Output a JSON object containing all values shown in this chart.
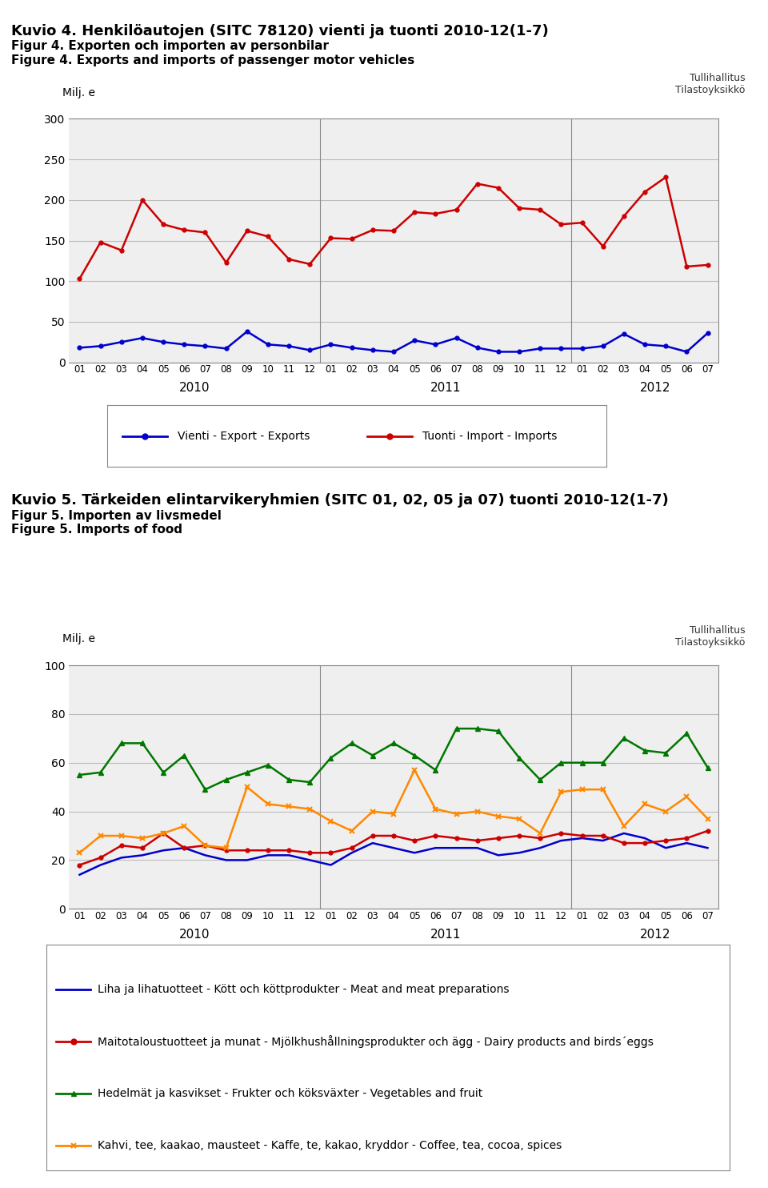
{
  "chart1": {
    "title_line1": "Kuvio 4. Henkilöautojen (SITC 78120) vienti ja tuonti 2010-12(1-7)",
    "title_line2": "Figur 4. Exporten och importen av personbilar",
    "title_line3": "Figure 4. Exports and imports of passenger motor vehicles",
    "ylabel": "Milj. e",
    "ylim": [
      0,
      300
    ],
    "yticks": [
      0,
      50,
      100,
      150,
      200,
      250,
      300
    ],
    "export_data": [
      18,
      20,
      25,
      30,
      25,
      22,
      20,
      17,
      38,
      22,
      20,
      15,
      22,
      18,
      15,
      13,
      27,
      22,
      30,
      18,
      13,
      13,
      17,
      17,
      17,
      20,
      35,
      22,
      20,
      13,
      36
    ],
    "import_data": [
      103,
      148,
      138,
      200,
      170,
      163,
      160,
      123,
      162,
      155,
      127,
      121,
      153,
      152,
      163,
      162,
      185,
      183,
      188,
      220,
      215,
      190,
      188,
      170,
      172,
      143,
      180,
      210,
      228,
      118,
      120
    ],
    "export_color": "#0000CC",
    "import_color": "#CC0000",
    "legend_export": "Vienti - Export - Exports",
    "legend_import": "Tuonti - Import - Imports",
    "watermark": "Tullihallitus\nTilastoyksikkö"
  },
  "chart2": {
    "title_line1": "Kuvio 5. Tärkeiden elintarvikeryhmien (SITC 01, 02, 05 ja 07) tuonti 2010-12(1-7)",
    "title_line2": "Figur 5. Importen av livsmedel",
    "title_line3": "Figure 5. Imports of food",
    "ylabel": "Milj. e",
    "ylim": [
      0,
      100
    ],
    "yticks": [
      0,
      20,
      40,
      60,
      80,
      100
    ],
    "meat_data": [
      14,
      18,
      21,
      22,
      24,
      25,
      22,
      20,
      20,
      22,
      22,
      20,
      18,
      23,
      27,
      25,
      23,
      25,
      25,
      25,
      22,
      23,
      25,
      28,
      29,
      28,
      31,
      29,
      25,
      27,
      25
    ],
    "dairy_data": [
      18,
      21,
      26,
      25,
      31,
      25,
      26,
      24,
      24,
      24,
      24,
      23,
      23,
      25,
      30,
      30,
      28,
      30,
      29,
      28,
      29,
      30,
      29,
      31,
      30,
      30,
      27,
      27,
      28,
      29,
      32
    ],
    "veg_data": [
      55,
      56,
      68,
      68,
      56,
      63,
      49,
      53,
      56,
      59,
      53,
      52,
      62,
      68,
      63,
      68,
      63,
      57,
      74,
      74,
      73,
      62,
      53,
      60,
      60,
      60,
      70,
      65,
      64,
      72,
      58
    ],
    "coffee_data": [
      23,
      30,
      30,
      29,
      31,
      34,
      26,
      25,
      50,
      43,
      42,
      41,
      36,
      32,
      40,
      39,
      57,
      41,
      39,
      40,
      38,
      37,
      31,
      48,
      49,
      49,
      34,
      43,
      40,
      46,
      37
    ],
    "meat_color": "#0000CC",
    "dairy_color": "#CC0000",
    "veg_color": "#007700",
    "coffee_color": "#FF8800",
    "legend_meat": "Liha ja lihatuotteet - Kött och köttprodukter - Meat and meat preparations",
    "legend_dairy": "Maitotaloustuotteet ja munat - Mjölkhushållningsprodukter och ägg - Dairy products and birds´eggs",
    "legend_veg": "Hedelmät ja kasvikset - Frukter och köksväxter - Vegetables and fruit",
    "legend_coffee": "Kahvi, tee, kaakao, mausteet - Kaffe, te, kakao, kryddor - Coffee, tea, cocoa, spices",
    "watermark": "Tullihallitus\nTilastoyksikkö"
  },
  "background_color": "#ffffff"
}
